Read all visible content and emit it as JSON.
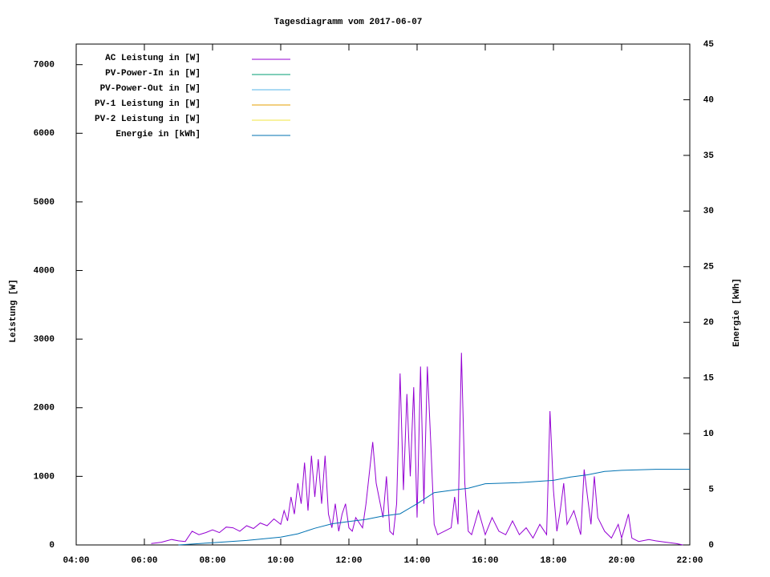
{
  "chart_data": {
    "type": "line",
    "title": "Tagesdiagramm vom 2017-06-07",
    "y_label": "Leistung [W]",
    "y2_label": "Energie in [kWh]",
    "y2_axis_label": "Energie [kWh]",
    "xlim": [
      4,
      22
    ],
    "xticks": [
      {
        "value": 4,
        "label": "04:00"
      },
      {
        "value": 6,
        "label": "06:00"
      },
      {
        "value": 8,
        "label": "08:00"
      },
      {
        "value": 10,
        "label": "10:00"
      },
      {
        "value": 12,
        "label": "12:00"
      },
      {
        "value": 14,
        "label": "14:00"
      },
      {
        "value": 16,
        "label": "16:00"
      },
      {
        "value": 18,
        "label": "18:00"
      },
      {
        "value": 20,
        "label": "20:00"
      },
      {
        "value": 22,
        "label": "22:00"
      }
    ],
    "ylim": [
      0,
      7300
    ],
    "yticks": [
      0,
      1000,
      2000,
      3000,
      4000,
      5000,
      6000,
      7000
    ],
    "y2lim": [
      0,
      45
    ],
    "y2ticks": [
      0,
      5,
      10,
      15,
      20,
      25,
      30,
      35,
      40,
      45
    ],
    "legend": "top-left",
    "series": [
      {
        "name": "AC Leistung in [W]",
        "color": "#9400d3",
        "x": [
          6.2,
          6.5,
          6.8,
          7.0,
          7.2,
          7.4,
          7.6,
          7.8,
          8.0,
          8.2,
          8.4,
          8.6,
          8.8,
          9.0,
          9.2,
          9.4,
          9.6,
          9.8,
          10.0,
          10.1,
          10.2,
          10.3,
          10.4,
          10.5,
          10.6,
          10.7,
          10.8,
          10.9,
          11.0,
          11.1,
          11.2,
          11.3,
          11.4,
          11.5,
          11.6,
          11.7,
          11.8,
          11.9,
          12.0,
          12.1,
          12.2,
          12.4,
          12.5,
          12.7,
          12.8,
          13.0,
          13.1,
          13.2,
          13.3,
          13.4,
          13.5,
          13.6,
          13.7,
          13.8,
          13.9,
          14.0,
          14.1,
          14.2,
          14.3,
          14.4,
          14.5,
          14.6,
          14.8,
          15.0,
          15.1,
          15.2,
          15.3,
          15.4,
          15.5,
          15.6,
          15.8,
          16.0,
          16.2,
          16.4,
          16.6,
          16.8,
          17.0,
          17.2,
          17.4,
          17.6,
          17.8,
          17.9,
          18.0,
          18.1,
          18.2,
          18.3,
          18.4,
          18.6,
          18.8,
          18.9,
          19.0,
          19.1,
          19.2,
          19.3,
          19.5,
          19.7,
          19.9,
          20.0,
          20.2,
          20.3,
          20.5,
          20.8,
          21.0,
          21.3,
          21.6,
          21.8
        ],
        "values": [
          20,
          40,
          80,
          60,
          50,
          200,
          150,
          180,
          220,
          180,
          260,
          250,
          200,
          280,
          240,
          320,
          280,
          380,
          300,
          500,
          350,
          700,
          450,
          900,
          600,
          1200,
          500,
          1300,
          700,
          1250,
          600,
          1300,
          450,
          250,
          600,
          200,
          450,
          600,
          250,
          200,
          400,
          250,
          600,
          1500,
          900,
          400,
          1000,
          200,
          150,
          600,
          2500,
          800,
          2200,
          1000,
          2300,
          400,
          2600,
          600,
          2600,
          1500,
          300,
          150,
          200,
          250,
          700,
          300,
          2800,
          900,
          200,
          150,
          500,
          150,
          400,
          200,
          150,
          350,
          150,
          250,
          100,
          300,
          150,
          1950,
          800,
          200,
          500,
          900,
          300,
          500,
          150,
          1100,
          700,
          300,
          1000,
          400,
          200,
          100,
          300,
          100,
          450,
          100,
          50,
          80,
          60,
          40,
          20,
          0
        ]
      },
      {
        "name": "PV-Power-In in [W]",
        "color": "#009e73",
        "x": [],
        "values": []
      },
      {
        "name": "PV-Power-Out in [W]",
        "color": "#56b4e9",
        "x": [],
        "values": []
      },
      {
        "name": "PV-1 Leistung in [W]",
        "color": "#e69f00",
        "x": [],
        "values": []
      },
      {
        "name": "PV-2 Leistung in [W]",
        "color": "#f0e442",
        "x": [],
        "values": []
      },
      {
        "name": "Energie in [kWh]",
        "color": "#0072b2",
        "axis": "y2",
        "x": [
          7,
          8,
          9,
          10,
          10.5,
          11,
          11.5,
          12,
          12.5,
          13,
          13.5,
          14,
          14.5,
          15,
          15.5,
          16,
          17,
          18,
          18.5,
          19,
          19.5,
          20,
          21,
          22
        ],
        "values": [
          0,
          0.2,
          0.4,
          0.7,
          1.0,
          1.5,
          1.9,
          2.1,
          2.3,
          2.6,
          2.8,
          3.7,
          4.7,
          4.9,
          5.1,
          5.5,
          5.6,
          5.8,
          6.1,
          6.3,
          6.6,
          6.7,
          6.8,
          6.8
        ]
      }
    ]
  }
}
